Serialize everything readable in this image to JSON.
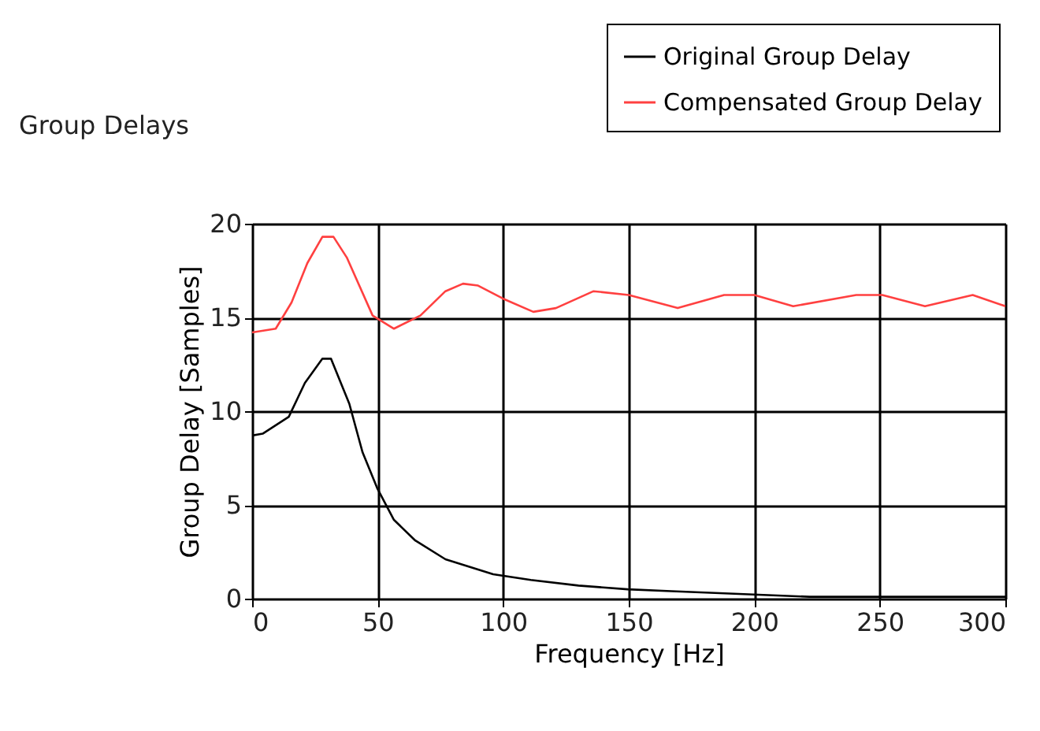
{
  "chart_data": {
    "type": "line",
    "title": "Group Delays",
    "xlabel": "Frequency [Hz]",
    "ylabel": "Group Delay [Samples]",
    "xlim": [
      0,
      300
    ],
    "xticks": [
      0,
      50,
      100,
      150,
      200,
      250,
      300
    ],
    "ylim": [
      0,
      20
    ],
    "yticks": [
      0,
      5,
      10,
      15,
      20
    ],
    "grid": true,
    "legend": "top right",
    "line_style": "solid",
    "series": [
      {
        "name": "Original Group Delay",
        "color": "#000000",
        "x": [
          0,
          4.2,
          14.6,
          21,
          28,
          31.4,
          38.7,
          44,
          49.8,
          56.5,
          65,
          77,
          96,
          111,
          130,
          149.6,
          167,
          222,
          300
        ],
        "values": [
          8.7,
          8.8,
          9.7,
          11.5,
          12.8,
          12.8,
          10.4,
          7.8,
          5.9,
          4.2,
          3.1,
          2.1,
          1.3,
          1.0,
          0.7,
          0.5,
          0.4,
          0.1,
          0.1
        ]
      },
      {
        "name": "Compensated Group Delay",
        "color": "#ff4040",
        "x": [
          0,
          9.4,
          15.7,
          22,
          28,
          32.4,
          37.7,
          48,
          56.5,
          67,
          77,
          84,
          90,
          100,
          112,
          121,
          136,
          150,
          169.5,
          188,
          200,
          215.5,
          240.6,
          251,
          268,
          287,
          300
        ],
        "values": [
          14.2,
          14.4,
          15.8,
          17.9,
          19.3,
          19.3,
          18.2,
          15.1,
          14.4,
          15.1,
          16.4,
          16.8,
          16.7,
          16.0,
          15.3,
          15.5,
          16.4,
          16.2,
          15.5,
          16.2,
          16.2,
          15.6,
          16.2,
          16.2,
          15.6,
          16.2,
          15.6
        ]
      }
    ]
  }
}
